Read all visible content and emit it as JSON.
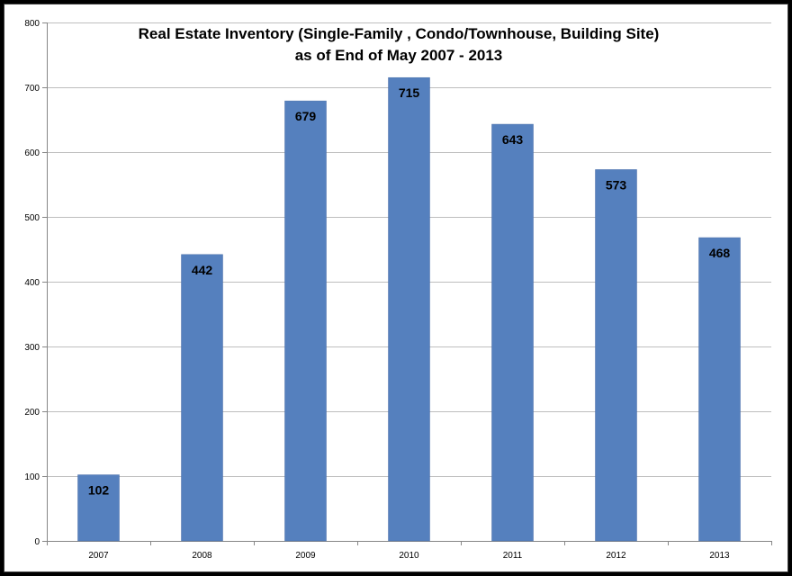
{
  "chart_data": {
    "type": "bar",
    "title": "Real Estate Inventory (Single-Family , Condo/Townhouse, Building Site)",
    "subtitle": "as of End of May 2007 - 2013",
    "xlabel": "",
    "ylabel": "",
    "categories": [
      "2007",
      "2008",
      "2009",
      "2010",
      "2011",
      "2012",
      "2013"
    ],
    "values": [
      102,
      442,
      679,
      715,
      643,
      573,
      468
    ],
    "ylim": [
      0,
      800
    ],
    "yticks": [
      0,
      100,
      200,
      300,
      400,
      500,
      600,
      700,
      800
    ],
    "grid": true,
    "legend": "none",
    "bar_color": "#5580BE",
    "grid_color": "#BEBEBE",
    "data_labels": [
      "102",
      "442",
      "679",
      "715",
      "643",
      "573",
      "468"
    ]
  }
}
